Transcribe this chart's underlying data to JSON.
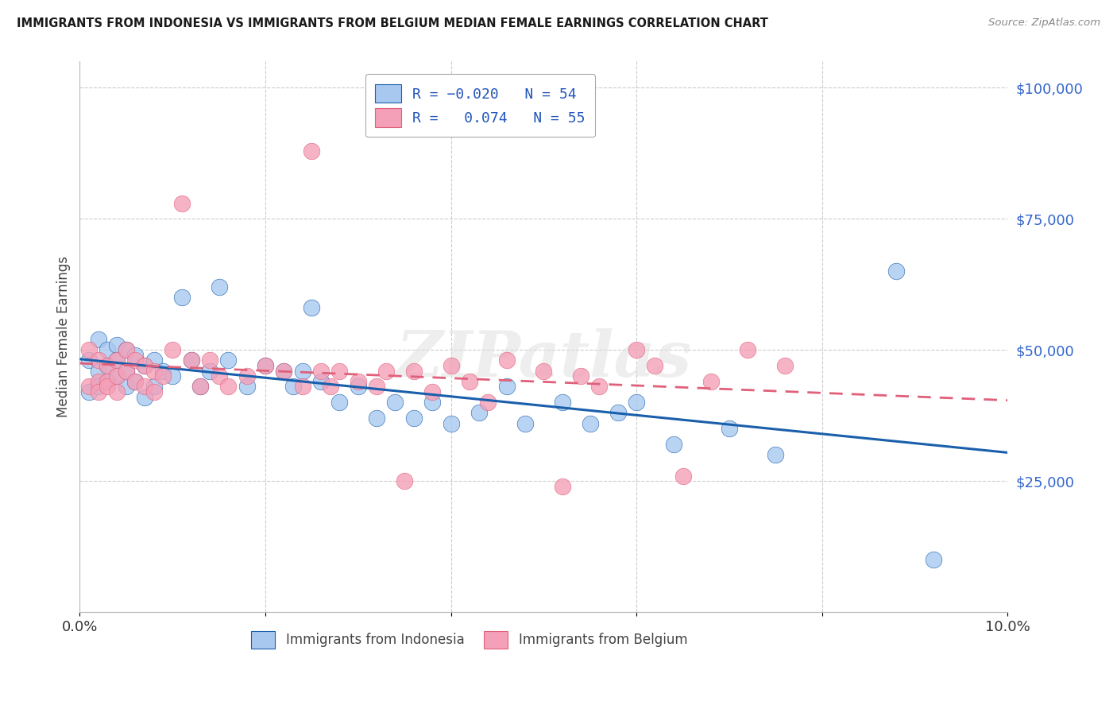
{
  "title": "IMMIGRANTS FROM INDONESIA VS IMMIGRANTS FROM BELGIUM MEDIAN FEMALE EARNINGS CORRELATION CHART",
  "source": "Source: ZipAtlas.com",
  "ylabel": "Median Female Earnings",
  "xlim": [
    0,
    0.1
  ],
  "ylim": [
    0,
    105000
  ],
  "color_blue": "#A8C8F0",
  "color_pink": "#F4A0B8",
  "line_blue": "#1A5FAB",
  "line_pink": "#E0607A",
  "watermark": "ZIPatlas",
  "indonesia_x": [
    0.001,
    0.001,
    0.002,
    0.002,
    0.002,
    0.003,
    0.003,
    0.003,
    0.004,
    0.004,
    0.004,
    0.005,
    0.005,
    0.005,
    0.006,
    0.006,
    0.007,
    0.007,
    0.008,
    0.008,
    0.009,
    0.01,
    0.011,
    0.012,
    0.013,
    0.014,
    0.015,
    0.016,
    0.018,
    0.02,
    0.022,
    0.023,
    0.024,
    0.025,
    0.026,
    0.028,
    0.03,
    0.032,
    0.034,
    0.036,
    0.038,
    0.04,
    0.043,
    0.046,
    0.048,
    0.052,
    0.055,
    0.058,
    0.06,
    0.064,
    0.07,
    0.075,
    0.088,
    0.092
  ],
  "indonesia_y": [
    48000,
    42000,
    52000,
    46000,
    43000,
    50000,
    44000,
    47000,
    51000,
    45000,
    48000,
    50000,
    46000,
    43000,
    49000,
    44000,
    47000,
    41000,
    48000,
    43000,
    46000,
    45000,
    60000,
    48000,
    43000,
    46000,
    62000,
    48000,
    43000,
    47000,
    46000,
    43000,
    46000,
    58000,
    44000,
    40000,
    43000,
    37000,
    40000,
    37000,
    40000,
    36000,
    38000,
    43000,
    36000,
    40000,
    36000,
    38000,
    40000,
    32000,
    35000,
    30000,
    65000,
    10000
  ],
  "belgium_x": [
    0.001,
    0.001,
    0.002,
    0.002,
    0.002,
    0.003,
    0.003,
    0.003,
    0.004,
    0.004,
    0.004,
    0.005,
    0.005,
    0.006,
    0.006,
    0.007,
    0.007,
    0.008,
    0.008,
    0.009,
    0.01,
    0.011,
    0.012,
    0.013,
    0.014,
    0.015,
    0.016,
    0.018,
    0.02,
    0.022,
    0.024,
    0.025,
    0.026,
    0.027,
    0.028,
    0.03,
    0.032,
    0.033,
    0.035,
    0.036,
    0.038,
    0.04,
    0.042,
    0.044,
    0.046,
    0.05,
    0.052,
    0.054,
    0.056,
    0.06,
    0.062,
    0.065,
    0.068,
    0.072,
    0.076
  ],
  "belgium_y": [
    50000,
    43000,
    48000,
    44000,
    42000,
    47000,
    44000,
    43000,
    48000,
    45000,
    42000,
    50000,
    46000,
    48000,
    44000,
    47000,
    43000,
    46000,
    42000,
    45000,
    50000,
    78000,
    48000,
    43000,
    48000,
    45000,
    43000,
    45000,
    47000,
    46000,
    43000,
    88000,
    46000,
    43000,
    46000,
    44000,
    43000,
    46000,
    25000,
    46000,
    42000,
    47000,
    44000,
    40000,
    48000,
    46000,
    24000,
    45000,
    43000,
    50000,
    47000,
    26000,
    44000,
    50000,
    47000
  ],
  "indo_trend": [
    -0.02,
    54
  ],
  "belg_trend": [
    0.074,
    55
  ]
}
